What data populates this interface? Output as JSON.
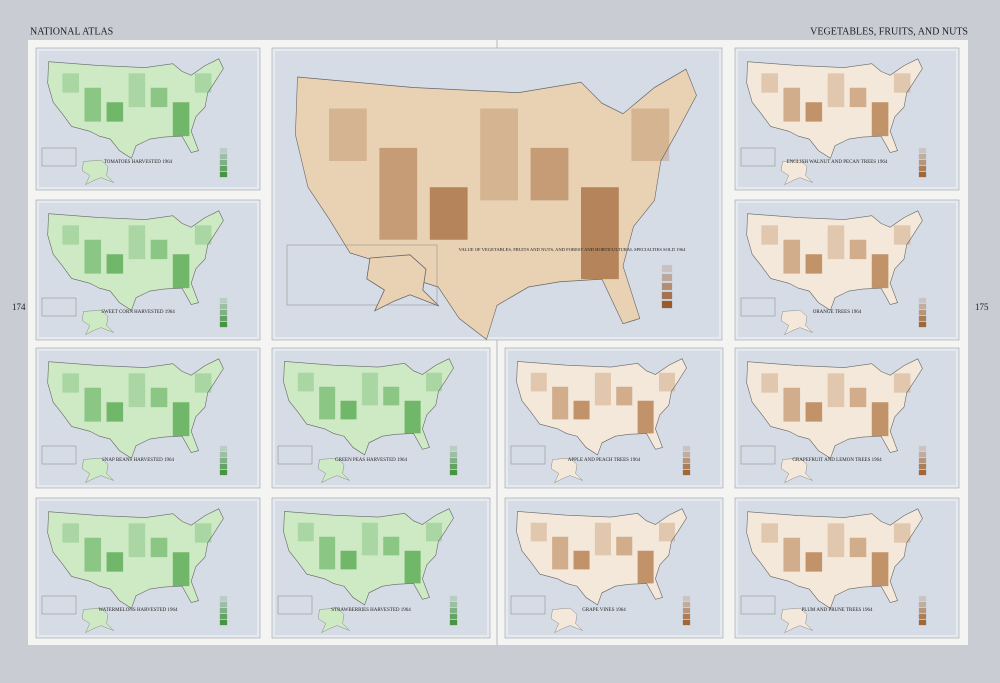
{
  "header": {
    "left": "NATIONAL ATLAS",
    "right": "VEGETABLES, FRUITS, AND NUTS"
  },
  "page_numbers": [
    "174",
    "175"
  ],
  "main_map": {
    "title": "VALUE OF VEGETABLES, FRUITS AND NUTS, AND FOREST AND HORTICULTURAL SPECIALTIES SOLD 1964"
  },
  "maps": [
    {
      "title": "TOMATOES HARVESTED 1964"
    },
    {
      "title": "SWEET CORN HARVESTED 1964"
    },
    {
      "title": "SNAP BEANS HARVESTED 1964"
    },
    {
      "title": "WATERMELONS HARVESTED 1964"
    },
    {
      "title": "GREEN PEAS HARVESTED 1964"
    },
    {
      "title": "STRAWBERRIES HARVESTED 1964"
    },
    {
      "title": "APPLE AND PEACH TREES 1964"
    },
    {
      "title": "GRAPE VINES 1964"
    },
    {
      "title": "ENGLISH WALNUT AND PECAN TREES 1964"
    },
    {
      "title": "ORANGE TREES 1964"
    },
    {
      "title": "GRAPEFRUIT AND LEMON TREES 1964"
    },
    {
      "title": "PLUM AND PRUNE TREES 1964"
    }
  ]
}
